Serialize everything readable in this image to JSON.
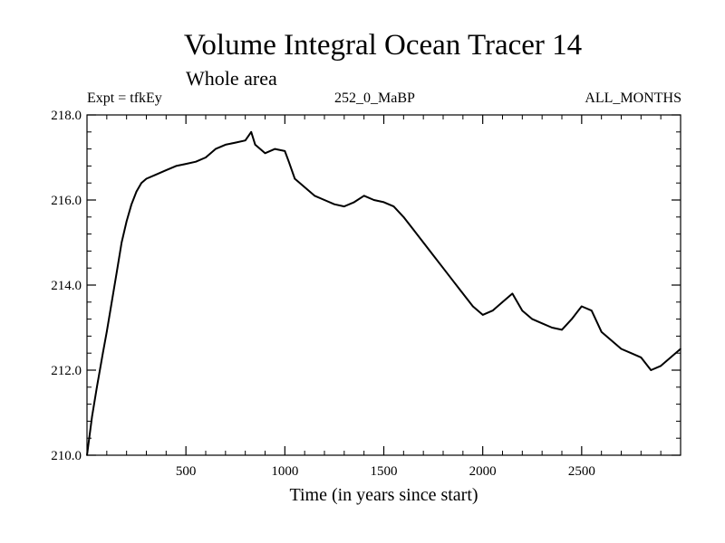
{
  "header": {
    "title": "Volume Integral Ocean Tracer 14",
    "subtitle": "Whole area",
    "expt": "Expt = tfkEy",
    "run": "252_0_MaBP",
    "months": "ALL_MONTHS"
  },
  "chart_data": {
    "type": "line",
    "title": "Volume Integral Ocean Tracer 14",
    "subtitle": "Whole area",
    "xlabel": "Time (in years since start)",
    "ylabel": "",
    "xlim": [
      0,
      3000
    ],
    "ylim": [
      210.0,
      218.0
    ],
    "x_ticks": [
      500,
      1000,
      1500,
      2000,
      2500
    ],
    "x_tick_labels": [
      "500",
      "1000",
      "1500",
      "2000",
      "2500"
    ],
    "y_ticks": [
      210.0,
      212.0,
      214.0,
      216.0,
      218.0
    ],
    "y_tick_labels": [
      "210.0",
      "212.0",
      "214.0",
      "216.0",
      "218.0"
    ],
    "grid": false,
    "series": [
      {
        "name": "",
        "color": "#000000",
        "x": [
          0,
          25,
          50,
          80,
          100,
          125,
          150,
          175,
          200,
          225,
          250,
          275,
          300,
          350,
          400,
          450,
          500,
          550,
          600,
          650,
          700,
          750,
          800,
          830,
          850,
          900,
          950,
          1000,
          1020,
          1050,
          1100,
          1150,
          1200,
          1250,
          1300,
          1350,
          1400,
          1450,
          1500,
          1550,
          1600,
          1650,
          1700,
          1750,
          1800,
          1850,
          1900,
          1950,
          2000,
          2050,
          2100,
          2150,
          2200,
          2250,
          2300,
          2350,
          2400,
          2450,
          2500,
          2550,
          2600,
          2650,
          2700,
          2750,
          2800,
          2850,
          2900,
          2950,
          3000
        ],
        "y": [
          210.0,
          210.9,
          211.6,
          212.4,
          212.9,
          213.6,
          214.3,
          215.0,
          215.5,
          215.9,
          216.2,
          216.4,
          216.5,
          216.6,
          216.7,
          216.8,
          216.85,
          216.9,
          217.0,
          217.2,
          217.3,
          217.35,
          217.4,
          217.6,
          217.3,
          217.1,
          217.2,
          217.15,
          216.9,
          216.5,
          216.3,
          216.1,
          216.0,
          215.9,
          215.85,
          215.95,
          216.1,
          216.0,
          215.95,
          215.85,
          215.6,
          215.3,
          215.0,
          214.7,
          214.4,
          214.1,
          213.8,
          213.5,
          213.3,
          213.4,
          213.6,
          213.8,
          213.4,
          213.2,
          213.1,
          213.0,
          212.95,
          213.2,
          213.5,
          213.4,
          212.9,
          212.7,
          212.5,
          212.4,
          212.3,
          212.0,
          212.1,
          212.3,
          212.5
        ]
      }
    ]
  }
}
